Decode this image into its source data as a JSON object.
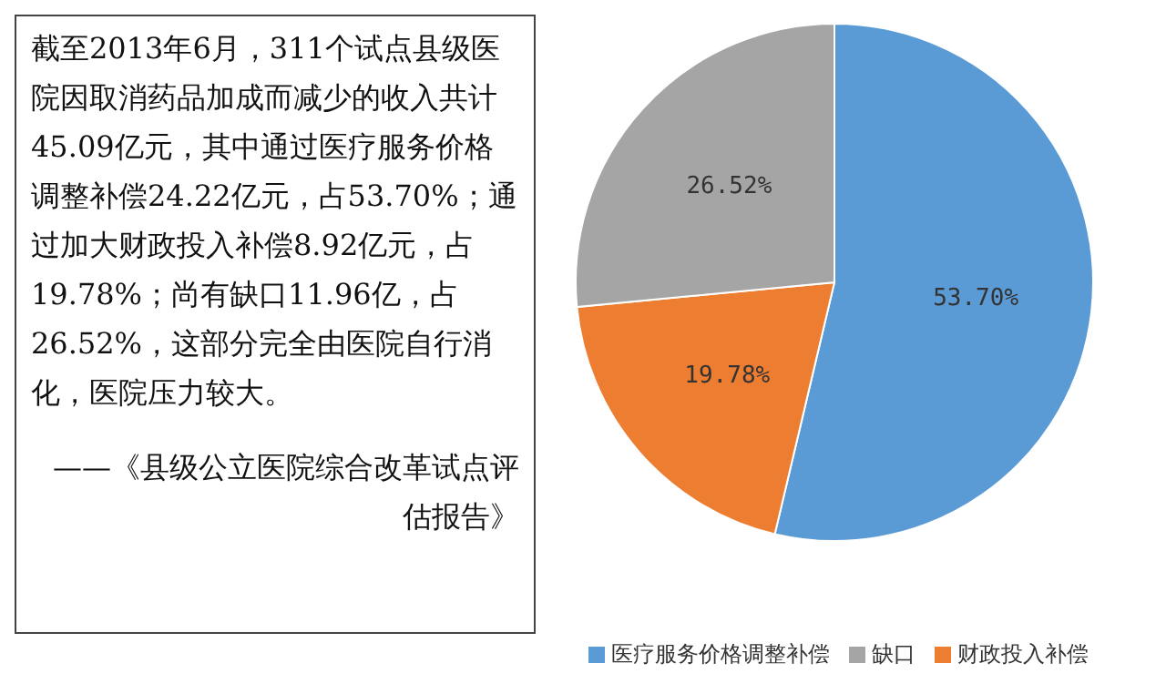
{
  "chart_data": {
    "type": "pie",
    "categories": [
      "医疗服务价格调整补偿",
      "财政投入补偿",
      "缺口"
    ],
    "values": [
      53.7,
      19.78,
      26.52
    ],
    "colors": [
      "#5b9bd5",
      "#ed7d31",
      "#a5a5a5"
    ],
    "value_labels": [
      "53.70%",
      "19.78%",
      "26.52%"
    ],
    "legend": "bottom",
    "annotations": [
      "截至2013年6月，311个试点县级医院因取消药品加成而减少的收入共计45.09亿元，其中通过医疗服务价格调整补偿24.22亿元，占53.70%；通过加大财政投入补偿8.92亿元，占19.78%；尚有缺口11.96亿，占26.52%，这部分完全由医院自行消化，医院压力较大。",
      "——《县级公立医院综合改革试点评估报告》"
    ]
  }
}
